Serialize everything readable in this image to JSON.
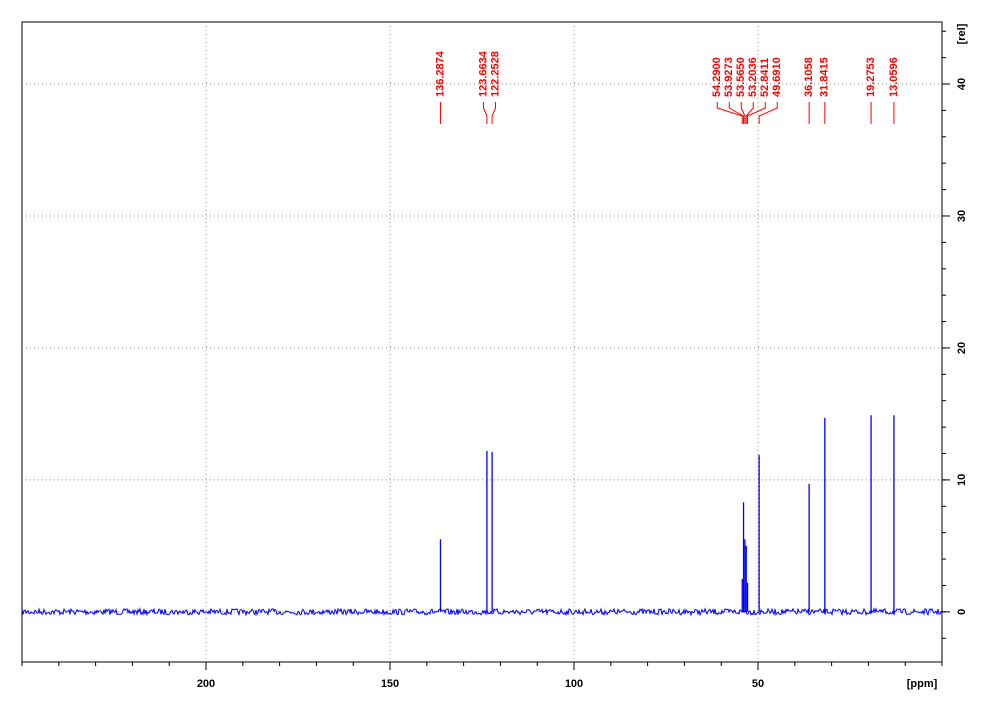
{
  "chart_data": {
    "type": "nmr",
    "xlabel": "[ppm]",
    "ylabel": "[rel]",
    "xlim": [
      250,
      0
    ],
    "xticks": [
      200,
      150,
      100,
      50
    ],
    "ylim": [
      -3.8,
      44.7
    ],
    "yticks": [
      0,
      10,
      20,
      30,
      40
    ],
    "grid": true,
    "color": "#0000ff",
    "label_color": "#ff0000",
    "x": [
      136.2874,
      123.6634,
      122.2528,
      54.29,
      53.9273,
      53.565,
      53.2036,
      52.8411,
      49.691,
      36.1058,
      31.8415,
      19.2753,
      13.0596
    ],
    "x_labels": [
      "136.2874",
      "123.6634",
      "122.2528",
      "54.2900",
      "53.9273",
      "53.5650",
      "53.2036",
      "52.8411",
      "49.6910",
      "36.1058",
      "31.8415",
      "19.2753",
      "13.0596"
    ],
    "values": [
      5.5,
      12.2,
      12.1,
      2.5,
      8.3,
      5.5,
      5.0,
      2.2,
      11.9,
      9.7,
      14.7,
      14.9,
      14.9
    ]
  }
}
